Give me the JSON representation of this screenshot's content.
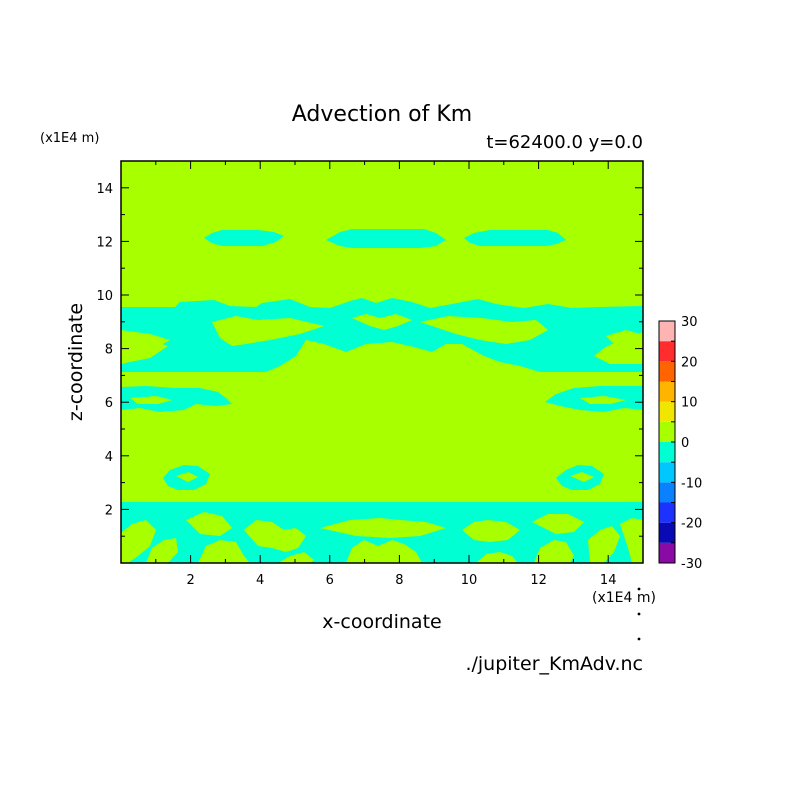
{
  "chart_data": {
    "type": "heatmap",
    "title": "Advection of Km",
    "subtitle": "t=62400.0 y=0.0",
    "xlabel": "x-coordinate",
    "ylabel": "z-coordinate",
    "x_unit": "(x1E4 m)",
    "y_unit": "(x1E4 m)",
    "source_file": "./jupiter_KmAdv.nc",
    "xlim": [
      0,
      15
    ],
    "ylim": [
      0,
      15
    ],
    "x_ticks": [
      "2",
      "4",
      "6",
      "8",
      "10",
      "12",
      "14"
    ],
    "y_ticks": [
      "2",
      "4",
      "6",
      "8",
      "10",
      "12",
      "14"
    ],
    "colorbar": {
      "ticks": [
        "30",
        "20",
        "10",
        "0",
        "-10",
        "-20",
        "-30"
      ],
      "levels": [
        -30,
        -25,
        -20,
        -15,
        -10,
        -5,
        0,
        5,
        10,
        15,
        20,
        25,
        30
      ],
      "colors": [
        "#8a0aa6",
        "#0a0ab4",
        "#1e32ff",
        "#0a82ff",
        "#00c8ff",
        "#00ffd2",
        "#a8ff00",
        "#f0e600",
        "#ffb400",
        "#ff6400",
        "#ff2d2d",
        "#ffb4b4"
      ]
    },
    "background_value_color": "#a8ff00",
    "negative_region_color": "#00ffd2",
    "regions_negative": [
      {
        "name": "upper-lens-left",
        "x": [
          2.5,
          4.5
        ],
        "z": [
          11.7,
          12.3
        ]
      },
      {
        "name": "upper-lens-center",
        "x": [
          6.0,
          9.0
        ],
        "z": [
          11.7,
          12.3
        ]
      },
      {
        "name": "upper-lens-right",
        "x": [
          10.5,
          12.8
        ],
        "z": [
          11.7,
          12.3
        ]
      },
      {
        "name": "mid-band",
        "x": [
          0,
          15
        ],
        "z": [
          7.3,
          9.6
        ]
      },
      {
        "name": "left-lobe",
        "x": [
          0,
          3.0
        ],
        "z": [
          5.7,
          6.7
        ]
      },
      {
        "name": "right-lobe",
        "x": [
          12.2,
          15
        ],
        "z": [
          5.7,
          6.7
        ]
      },
      {
        "name": "low-lens-left",
        "x": [
          1.2,
          2.5
        ],
        "z": [
          3.0,
          3.7
        ]
      },
      {
        "name": "low-lens-right",
        "x": [
          12.5,
          13.8
        ],
        "z": [
          3.0,
          3.7
        ]
      },
      {
        "name": "bottom-band",
        "x": [
          0,
          15
        ],
        "z": [
          0,
          2.3
        ]
      }
    ]
  }
}
